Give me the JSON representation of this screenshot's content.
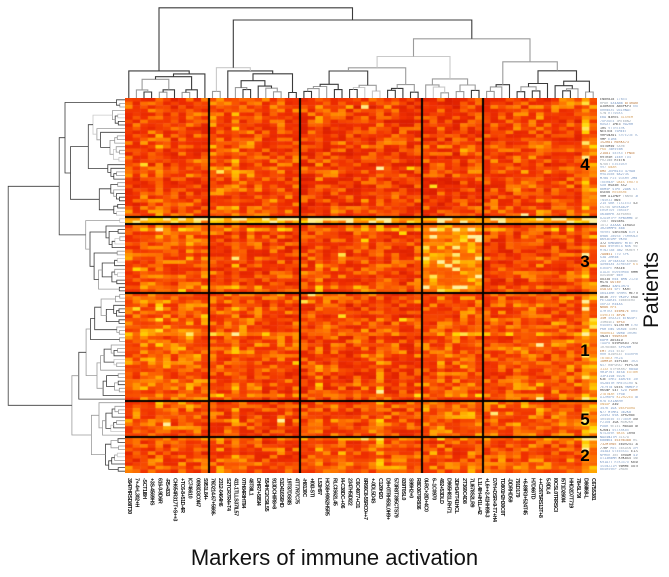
{
  "figure": {
    "axes": {
      "right_label": "Patients",
      "bottom_label": "Markers of immune activation"
    },
    "cluster_annotations": [
      {
        "text": "4"
      },
      {
        "text": "3"
      },
      {
        "text": "1"
      },
      {
        "text": "5"
      },
      {
        "text": "2"
      }
    ]
  },
  "chart_data": {
    "type": "heatmap",
    "title": "",
    "xlabel": "Markers of immune activation",
    "ylabel": "Patients",
    "n_rows": 104,
    "n_cols": 62,
    "row_dendrogram": "left",
    "col_dendrogram": "top",
    "row_tick_labels_legible": false,
    "col_tick_labels_legible": false,
    "cluster_numbers_top_to_bottom": [
      "4",
      "3",
      "1",
      "5",
      "2"
    ],
    "row_cluster_sizes": [
      33,
      2,
      19,
      30,
      10,
      10
    ],
    "col_cluster_sizes": [
      11,
      12,
      16,
      8,
      15
    ],
    "grid_line_color": "#000000",
    "palette_stops": [
      [
        0.0,
        "#c81000"
      ],
      [
        0.3,
        "#ef2e00"
      ],
      [
        0.5,
        "#fa5a00"
      ],
      [
        0.66,
        "#ff8300"
      ],
      [
        0.8,
        "#ffb300"
      ],
      [
        0.9,
        "#ffd900"
      ],
      [
        1.0,
        "#fff7c4"
      ]
    ],
    "block_bias": [
      [
        0.04,
        0.08,
        0.02,
        0.0,
        0.06
      ],
      [
        0.4,
        0.45,
        0.4,
        0.38,
        0.4
      ],
      [
        0.1,
        0.04,
        0.06,
        0.34,
        0.03
      ],
      [
        0.14,
        0.08,
        0.04,
        0.1,
        0.1
      ],
      [
        0.1,
        0.04,
        0.08,
        0.16,
        0.14
      ],
      [
        0.06,
        0.08,
        0.12,
        0.1,
        0.14
      ]
    ],
    "hot_columns": {
      "4": 0.14,
      "14": 0.18,
      "25": 0.15,
      "33": 0.12,
      "60": 0.26,
      "61": 0.18
    }
  },
  "colors": {
    "background": "#ffffff",
    "annotation_text": "#000000",
    "dendrogram_strokes": [
      "#3b3b3b",
      "#9b9b9b",
      "#c9c9c9"
    ],
    "row_label_palette": [
      "#6d8fbf",
      "#88a4c8",
      "#3f3f3f",
      "#b87333",
      "#d19a55",
      "#96a0a8"
    ]
  }
}
